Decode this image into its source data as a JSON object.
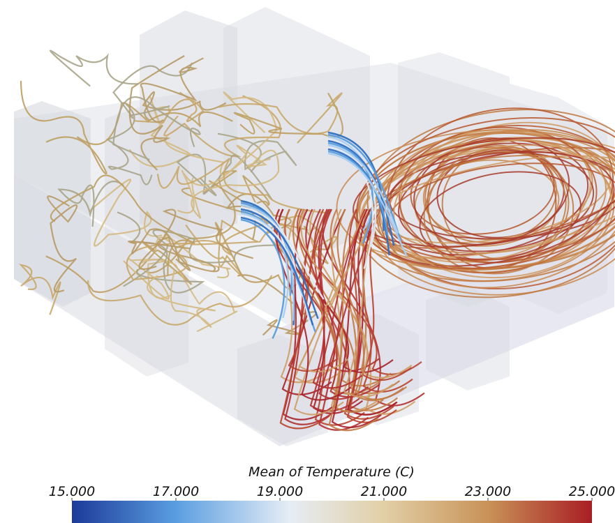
{
  "colorbar": {
    "title": "Mean of Temperature (C)",
    "lim": [
      15,
      25
    ],
    "ticks": [
      {
        "value": 15,
        "label": "15.000"
      },
      {
        "value": 17,
        "label": "17.000"
      },
      {
        "value": 19,
        "label": "19.000"
      },
      {
        "value": 21,
        "label": "21.000"
      },
      {
        "value": 23,
        "label": "23.000"
      },
      {
        "value": 25,
        "label": "25.000"
      }
    ]
  }
}
